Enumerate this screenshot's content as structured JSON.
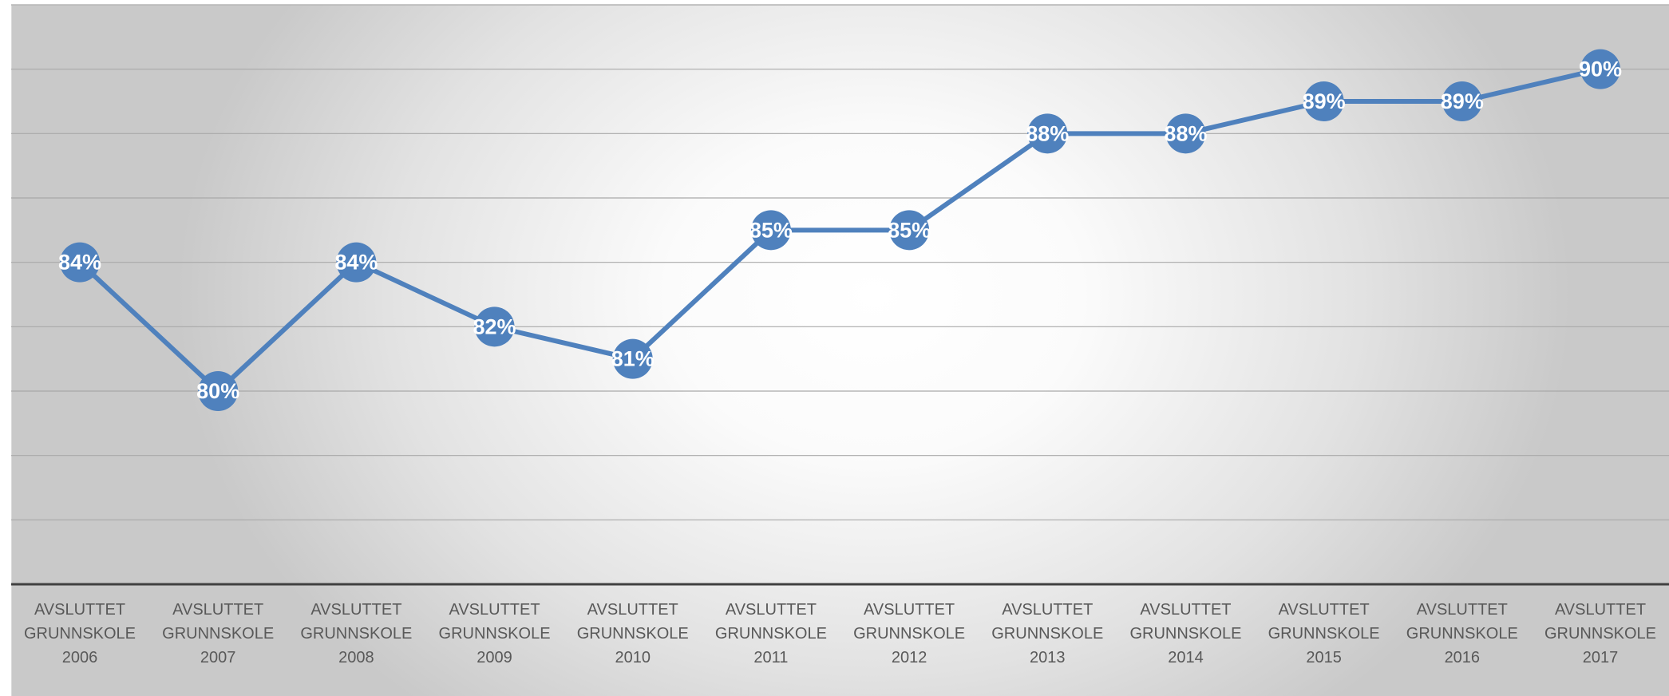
{
  "chart_data": {
    "type": "line",
    "categories": [
      "AVSLUTTET GRUNNSKOLE 2006",
      "AVSLUTTET GRUNNSKOLE 2007",
      "AVSLUTTET GRUNNSKOLE 2008",
      "AVSLUTTET GRUNNSKOLE 2009",
      "AVSLUTTET GRUNNSKOLE 2010",
      "AVSLUTTET GRUNNSKOLE 2011",
      "AVSLUTTET GRUNNSKOLE 2012",
      "AVSLUTTET GRUNNSKOLE 2013",
      "AVSLUTTET GRUNNSKOLE 2014",
      "AVSLUTTET GRUNNSKOLE 2015",
      "AVSLUTTET GRUNNSKOLE 2016",
      "AVSLUTTET GRUNNSKOLE 2017"
    ],
    "series": [
      {
        "values": [
          84,
          80,
          84,
          82,
          81,
          85,
          85,
          88,
          88,
          89,
          89,
          90
        ],
        "labels": [
          "84%",
          "80%",
          "84%",
          "82%",
          "81%",
          "85%",
          "85%",
          "88%",
          "88%",
          "89%",
          "89%",
          "90%"
        ],
        "color": "#4f81bd"
      }
    ],
    "title": "",
    "xlabel": "",
    "ylabel": "",
    "ylim": [
      74,
      92
    ],
    "grid": true,
    "legend": "none",
    "y_axis_labels": false
  }
}
